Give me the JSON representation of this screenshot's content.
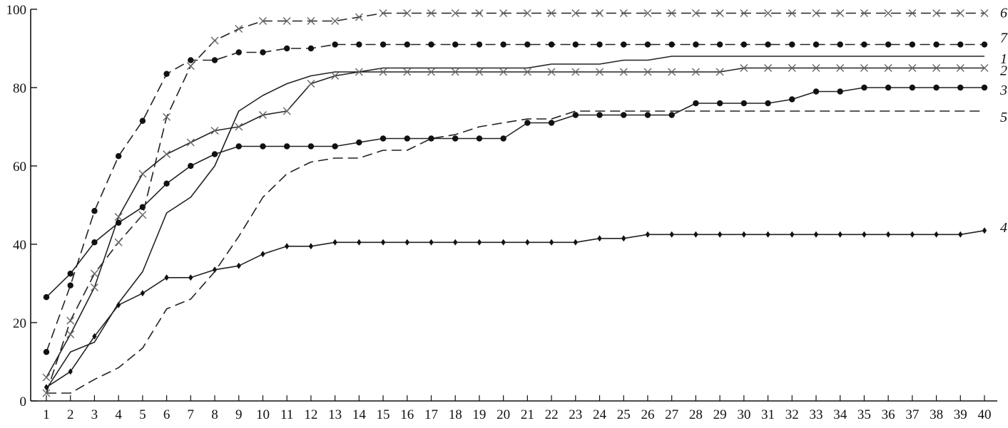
{
  "chart_data": {
    "type": "line",
    "x": [
      1,
      2,
      3,
      4,
      5,
      6,
      7,
      8,
      9,
      10,
      11,
      12,
      13,
      14,
      15,
      16,
      17,
      18,
      19,
      20,
      21,
      22,
      23,
      24,
      25,
      26,
      27,
      28,
      29,
      30,
      31,
      32,
      33,
      34,
      35,
      36,
      37,
      38,
      39,
      40
    ],
    "xlim": [
      1,
      40
    ],
    "ylim": [
      0,
      100
    ],
    "y_ticks": [
      0,
      20,
      40,
      60,
      80,
      100
    ],
    "x_ticks": [
      1,
      2,
      3,
      4,
      5,
      6,
      7,
      8,
      9,
      10,
      11,
      12,
      13,
      14,
      15,
      16,
      17,
      18,
      19,
      20,
      21,
      22,
      23,
      24,
      25,
      26,
      27,
      28,
      29,
      30,
      31,
      32,
      33,
      34,
      35,
      36,
      37,
      38,
      39,
      40
    ],
    "grid": false,
    "legend": "none; series identified by numbers at the right end of each line",
    "series": [
      {
        "name": "1",
        "style": "solid",
        "marker": "none",
        "color": "#222222",
        "values": [
          3,
          12.5,
          15,
          25,
          33,
          48,
          52,
          60,
          74,
          78,
          81,
          83,
          84,
          84,
          85,
          85,
          85,
          85,
          85,
          85,
          85,
          86,
          86,
          86,
          87,
          87,
          88,
          88,
          88,
          88,
          88,
          88,
          88,
          88,
          88,
          88,
          88,
          88,
          88,
          88
        ]
      },
      {
        "name": "2",
        "style": "solid",
        "marker": "x",
        "color": "#222222",
        "values": [
          6,
          17,
          29,
          47,
          58,
          63,
          66,
          69,
          70,
          73,
          74,
          81,
          83,
          84,
          84,
          84,
          84,
          84,
          84,
          84,
          84,
          84,
          84,
          84,
          84,
          84,
          84,
          84,
          84,
          85,
          85,
          85,
          85,
          85,
          85,
          85,
          85,
          85,
          85,
          85
        ]
      },
      {
        "name": "3",
        "style": "solid",
        "marker": "dot",
        "color": "#222222",
        "values": [
          26.5,
          32.5,
          40.5,
          45.5,
          49.5,
          55.5,
          60,
          63,
          65,
          65,
          65,
          65,
          65,
          66,
          67,
          67,
          67,
          67,
          67,
          67,
          71,
          71,
          73,
          73,
          73,
          73,
          73,
          76,
          76,
          76,
          76,
          77,
          79,
          79,
          80,
          80,
          80,
          80,
          80,
          80
        ]
      },
      {
        "name": "4",
        "style": "solid",
        "marker": "plus",
        "color": "#222222",
        "values": [
          3.5,
          7.5,
          16.5,
          24.5,
          27.5,
          31.5,
          31.5,
          33.5,
          34.5,
          37.5,
          39.5,
          39.5,
          40.5,
          40.5,
          40.5,
          40.5,
          40.5,
          40.5,
          40.5,
          40.5,
          40.5,
          40.5,
          40.5,
          41.5,
          41.5,
          42.5,
          42.5,
          42.5,
          42.5,
          42.5,
          42.5,
          42.5,
          42.5,
          42.5,
          42.5,
          42.5,
          42.5,
          42.5,
          42.5,
          43.5
        ]
      },
      {
        "name": "5",
        "style": "dashed",
        "marker": "none",
        "color": "#222222",
        "values": [
          2,
          2,
          5.5,
          8.5,
          13.5,
          23.5,
          26,
          33,
          42,
          52,
          58,
          61,
          62,
          62,
          64,
          64,
          67,
          68,
          70,
          71,
          72,
          72,
          74,
          74,
          74,
          74,
          74,
          74,
          74,
          74,
          74,
          74,
          74,
          74,
          74,
          74,
          74,
          74,
          74,
          74
        ]
      },
      {
        "name": "6",
        "style": "dashed",
        "marker": "x",
        "color": "#222222",
        "values": [
          2,
          20.5,
          32.5,
          40.5,
          47.5,
          72.5,
          85.5,
          92,
          95,
          97,
          97,
          97,
          97,
          98,
          99,
          99,
          99,
          99,
          99,
          99,
          99,
          99,
          99,
          99,
          99,
          99,
          99,
          99,
          99,
          99,
          99,
          99,
          99,
          99,
          99,
          99,
          99,
          99,
          99,
          99
        ]
      },
      {
        "name": "7",
        "style": "dashed",
        "marker": "dot",
        "color": "#222222",
        "values": [
          12.5,
          29.5,
          48.5,
          62.5,
          71.5,
          83.5,
          87,
          87,
          89,
          89,
          90,
          90,
          91,
          91,
          91,
          91,
          91,
          91,
          91,
          91,
          91,
          91,
          91,
          91,
          91,
          91,
          91,
          91,
          91,
          91,
          91,
          91,
          91,
          91,
          91,
          91,
          91,
          91,
          91,
          91
        ]
      }
    ]
  }
}
